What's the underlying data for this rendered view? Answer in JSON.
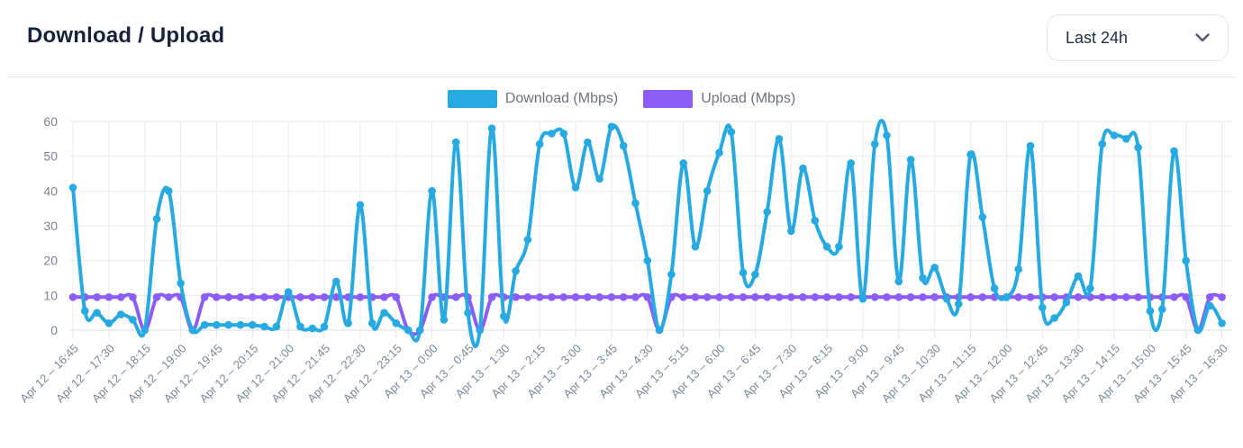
{
  "header": {
    "title": "Download / Upload"
  },
  "controls": {
    "range_selector": {
      "value": "Last 24h",
      "icon": "chevron-down-icon"
    }
  },
  "chart_data": {
    "type": "line",
    "title": "Download / Upload",
    "xlabel": "",
    "ylabel": "",
    "ylim": [
      0,
      60
    ],
    "y_ticks": [
      0,
      10,
      20,
      30,
      40,
      50,
      60
    ],
    "grid": true,
    "legend_position": "top-center",
    "points_per_label": 3,
    "x_labels": [
      "Apr 12 – 16:45",
      "Apr 12 – 17:30",
      "Apr 12 – 18:15",
      "Apr 12 – 19:00",
      "Apr 12 – 19:45",
      "Apr 12 – 20:15",
      "Apr 12 – 21:00",
      "Apr 12 – 21:45",
      "Apr 12 – 22:30",
      "Apr 12 – 23:15",
      "Apr 13 – 0:00",
      "Apr 13 – 0:45",
      "Apr 13 – 1:30",
      "Apr 13 – 2:15",
      "Apr 13 – 3:00",
      "Apr 13 – 3:45",
      "Apr 13 – 4:30",
      "Apr 13 – 5:15",
      "Apr 13 – 6:00",
      "Apr 13 – 6:45",
      "Apr 13 – 7:30",
      "Apr 13 – 8:15",
      "Apr 13 – 9:00",
      "Apr 13 – 9:45",
      "Apr 13 – 10:30",
      "Apr 13 – 11:15",
      "Apr 13 – 12:00",
      "Apr 13 – 12:45",
      "Apr 13 – 13:30",
      "Apr 13 – 14:15",
      "Apr 13 – 15:00",
      "Apr 13 – 15:45",
      "Apr 13 – 16:30"
    ],
    "series": [
      {
        "name": "Download (Mbps)",
        "color": "#27a9e1",
        "values": [
          41,
          5.5,
          5,
          2,
          4.5,
          3,
          0,
          32,
          40,
          13.5,
          0,
          1.5,
          1.5,
          1.5,
          1.5,
          1.5,
          1,
          1,
          11,
          1,
          0.5,
          1,
          14,
          2,
          36,
          2,
          5,
          2,
          0,
          0,
          40,
          3,
          54,
          5,
          0,
          58,
          4,
          17,
          26,
          53.5,
          56.5,
          56.5,
          41,
          54,
          43.5,
          58.5,
          53,
          36.5,
          20,
          0,
          16,
          48,
          24,
          40,
          51,
          57,
          16.5,
          16,
          34,
          55,
          28.5,
          46.5,
          31.5,
          24,
          24,
          48,
          9,
          53.5,
          56,
          14,
          49,
          15,
          18,
          9,
          7.5,
          50.5,
          32.5,
          12,
          9.5,
          17.5,
          53,
          6.5,
          3.5,
          8,
          15.5,
          12,
          53.5,
          56,
          55,
          52.5,
          5.5,
          6,
          51.5,
          20,
          0,
          7,
          2
        ]
      },
      {
        "name": "Upload (Mbps)",
        "color": "#8b5cf6",
        "values": [
          9.5,
          9.5,
          9.5,
          9.5,
          9.5,
          9.5,
          0,
          9.5,
          9.5,
          9.5,
          0,
          9.5,
          9.5,
          9.5,
          9.5,
          9.5,
          9.5,
          9.5,
          9.5,
          9.5,
          9.5,
          9.5,
          9.5,
          9.5,
          9.5,
          9.5,
          9.5,
          9.5,
          0,
          0,
          9.5,
          9.5,
          9.5,
          9.5,
          0,
          9.5,
          9.5,
          9.5,
          9.5,
          9.5,
          9.5,
          9.5,
          9.5,
          9.5,
          9.5,
          9.5,
          9.5,
          9.5,
          9.5,
          0,
          9.5,
          9.5,
          9.5,
          9.5,
          9.5,
          9.5,
          9.5,
          9.5,
          9.5,
          9.5,
          9.5,
          9.5,
          9.5,
          9.5,
          9.5,
          9.5,
          9.5,
          9.5,
          9.5,
          9.5,
          9.5,
          9.5,
          9.5,
          9.5,
          9.5,
          9.5,
          9.5,
          9.5,
          9.5,
          9.5,
          9.5,
          9.5,
          9.5,
          9.5,
          9.5,
          9.5,
          9.5,
          9.5,
          9.5,
          9.5,
          9.5,
          9.5,
          9.5,
          9.5,
          0,
          9.5,
          9.5
        ]
      }
    ]
  }
}
